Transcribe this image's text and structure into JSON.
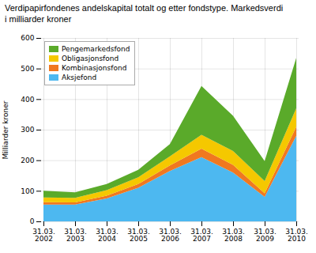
{
  "chart_data": {
    "type": "area",
    "stacked": true,
    "title": "Verdipapirfondenes andelskapital totalt og etter fondstype. Markedsverdi\ni milliarder kroner",
    "ylabel": "Milliarder kroner",
    "categories": [
      "31.03.\n2002",
      "31.03.\n2003",
      "31.03.\n2004",
      "31.03.\n2005",
      "31.03.\n2006",
      "31.03.\n2007",
      "31.03.\n2008",
      "31.03.\n2009",
      "31.03.\n2010"
    ],
    "series": [
      {
        "name": "Aksjefond",
        "color": "#4db8f0",
        "values": [
          55,
          55,
          75,
          110,
          165,
          210,
          160,
          80,
          280
        ]
      },
      {
        "name": "Kombinasjonsfond",
        "color": "#f07820",
        "values": [
          8,
          7,
          9,
          12,
          18,
          28,
          25,
          12,
          30
        ]
      },
      {
        "name": "Obligasjonsfond",
        "color": "#f5c800",
        "values": [
          15,
          15,
          18,
          22,
          30,
          45,
          45,
          40,
          60
        ]
      },
      {
        "name": "Pengemarkedsfond",
        "color": "#5aaa2a",
        "values": [
          22,
          18,
          20,
          25,
          40,
          160,
          115,
          65,
          165
        ]
      }
    ],
    "ylim": [
      0,
      600
    ],
    "yticks": [
      0,
      100,
      200,
      300,
      400,
      500,
      600
    ],
    "grid": true,
    "legend": "upper left"
  }
}
